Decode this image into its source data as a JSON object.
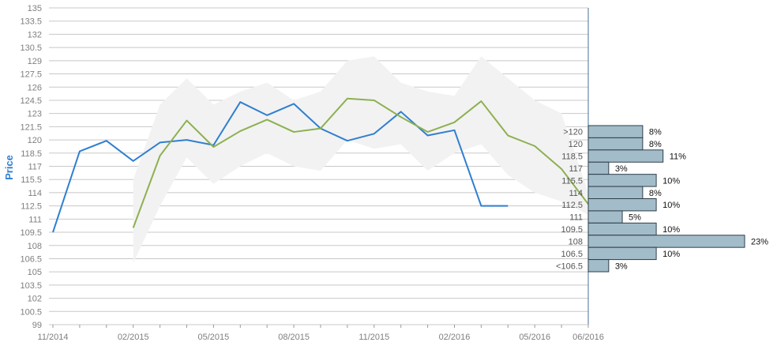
{
  "chart_data": {
    "type": "line",
    "ylabel": "Price",
    "ylim": [
      99,
      135
    ],
    "y_ticks": [
      "99",
      "100.5",
      "102",
      "103.5",
      "105",
      "106.5",
      "108",
      "109.5",
      "111",
      "112.5",
      "114",
      "115.5",
      "117",
      "118.5",
      "120",
      "121.5",
      "123",
      "124.5",
      "126",
      "127.5",
      "129",
      "130.5",
      "132",
      "133.5",
      "135"
    ],
    "x_ticks": [
      "11/2014",
      "02/2015",
      "05/2015",
      "08/2015",
      "11/2015",
      "02/2016",
      "05/2016",
      "06/2016"
    ],
    "x_labeled_index": [
      0,
      3,
      6,
      9,
      12,
      15,
      18,
      20
    ],
    "x_range": [
      0,
      20
    ],
    "grid": true,
    "series": [
      {
        "color": "#2f7fd0",
        "x": [
          0,
          1,
          2,
          3,
          4,
          5,
          6,
          7,
          8,
          9,
          10,
          11,
          12,
          13,
          14,
          15,
          16,
          17
        ],
        "values": [
          109.5,
          118.7,
          119.9,
          117.6,
          119.7,
          120.0,
          119.4,
          124.3,
          122.8,
          124.1,
          121.3,
          119.9,
          120.7,
          123.2,
          120.5,
          121.1,
          112.5,
          112.5
        ]
      },
      {
        "color": "#8db052",
        "x": [
          3,
          4,
          5,
          6,
          7,
          8,
          9,
          10,
          11,
          12,
          13,
          14,
          15,
          16,
          17,
          18,
          19,
          20
        ],
        "values": [
          110.0,
          118.2,
          122.2,
          119.2,
          121.0,
          122.3,
          120.9,
          121.3,
          124.7,
          124.5,
          122.6,
          120.9,
          122.0,
          124.4,
          120.5,
          119.3,
          116.7,
          112.7
        ]
      }
    ],
    "band": {
      "color": "#f2f2f2",
      "x": [
        3,
        4,
        5,
        6,
        7,
        8,
        9,
        10,
        11,
        12,
        13,
        14,
        15,
        16,
        17,
        18,
        19,
        20
      ],
      "upper": [
        115.5,
        124.0,
        127.0,
        124.0,
        125.5,
        126.5,
        124.5,
        125.5,
        129.0,
        129.5,
        126.5,
        125.5,
        125.0,
        129.5,
        127.0,
        124.5,
        123.0,
        114.0
      ],
      "lower": [
        106.0,
        112.5,
        118.0,
        115.0,
        117.0,
        118.5,
        117.0,
        116.5,
        120.0,
        119.0,
        119.5,
        116.5,
        118.5,
        119.5,
        116.0,
        114.0,
        113.0,
        111.5
      ]
    },
    "histogram": {
      "color": "#a3bcc9",
      "bins": [
        {
          "label": ">120",
          "value": 8,
          "pct": "8%"
        },
        {
          "label": "120",
          "value": 8,
          "pct": "8%"
        },
        {
          "label": "118.5",
          "value": 11,
          "pct": "11%"
        },
        {
          "label": "117",
          "value": 3,
          "pct": "3%"
        },
        {
          "label": "115.5",
          "value": 10,
          "pct": "10%"
        },
        {
          "label": "114",
          "value": 8,
          "pct": "8%"
        },
        {
          "label": "112.5",
          "value": 10,
          "pct": "10%"
        },
        {
          "label": "111",
          "value": 5,
          "pct": "5%"
        },
        {
          "label": "109.5",
          "value": 10,
          "pct": "10%"
        },
        {
          "label": "108",
          "value": 23,
          "pct": "23%"
        },
        {
          "label": "106.5",
          "value": 10,
          "pct": "10%"
        },
        {
          "label": "<106.5",
          "value": 3,
          "pct": "3%"
        }
      ]
    }
  }
}
